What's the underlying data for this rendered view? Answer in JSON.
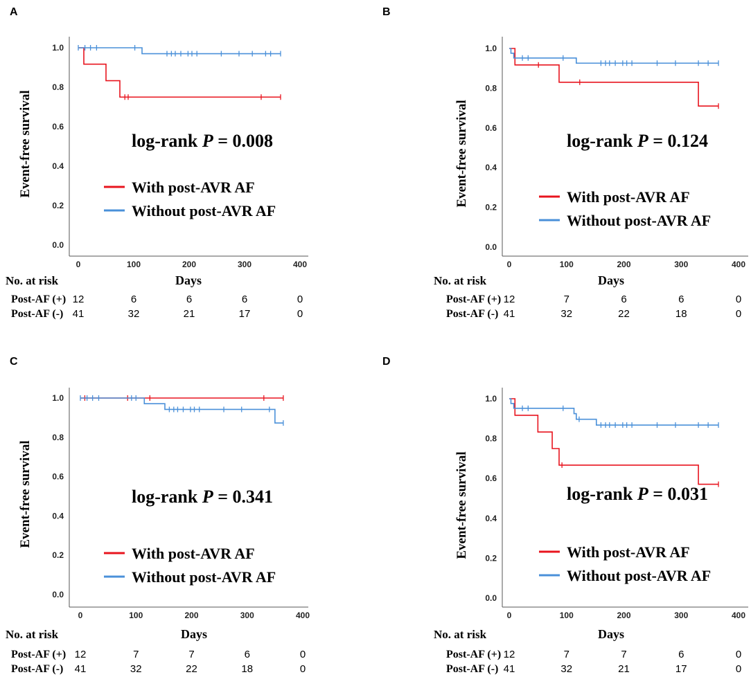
{
  "colors": {
    "with_af": "#e8141e",
    "without_af": "#4a90d9",
    "axis": "#555555"
  },
  "risk_table": {
    "title": "No. at risk",
    "row_plus": "Post-AF (+)",
    "row_minus": "Post-AF (-)"
  },
  "legend": {
    "with_af": "With post-AVR AF",
    "without_af": "Without post-AVR AF"
  },
  "chart_data": [
    {
      "panel": "A",
      "type": "line",
      "xlabel": "Days",
      "ylabel": "Event-free survival",
      "xlim": [
        -10,
        400
      ],
      "ylim": [
        0,
        1.0
      ],
      "xticks": [
        "0",
        "100",
        "200",
        "300",
        "400"
      ],
      "yticks": [
        "0.0",
        "0.2",
        "0.4",
        "0.6",
        "0.8",
        "1.0"
      ],
      "annotation_prefix": "log-rank ",
      "annotation_p": "P",
      "annotation_value": " = 0.008",
      "series": [
        {
          "name": "With post-AVR AF",
          "step_x": [
            0,
            10,
            50,
            75,
            365
          ],
          "step_y": [
            1.0,
            0.917,
            0.833,
            0.75,
            0.75
          ],
          "censor_x": [
            84,
            90,
            330,
            365
          ],
          "censor_y": [
            0.75,
            0.75,
            0.75,
            0.75
          ]
        },
        {
          "name": "Without post-AVR AF",
          "step_x": [
            0,
            115,
            365
          ],
          "step_y": [
            1.0,
            0.97,
            0.97
          ],
          "censor_x": [
            0,
            12,
            22,
            33,
            102,
            160,
            168,
            175,
            185,
            198,
            205,
            214,
            258,
            290,
            314,
            338,
            347,
            365
          ],
          "censor_y": [
            1.0,
            1.0,
            1.0,
            1.0,
            1.0,
            0.97,
            0.97,
            0.97,
            0.97,
            0.97,
            0.97,
            0.97,
            0.97,
            0.97,
            0.97,
            0.97,
            0.97,
            0.97
          ]
        }
      ],
      "risk_plus": [
        "12",
        "6",
        "6",
        "6",
        "0"
      ],
      "risk_minus": [
        "41",
        "32",
        "21",
        "17",
        "0"
      ]
    },
    {
      "panel": "B",
      "type": "line",
      "xlabel": "Days",
      "ylabel": "Event-free survival",
      "xlim": [
        -10,
        400
      ],
      "ylim": [
        0,
        1.0
      ],
      "xticks": [
        "0",
        "100",
        "200",
        "300",
        "400"
      ],
      "yticks": [
        "0.0",
        "0.2",
        "0.4",
        "0.6",
        "0.8",
        "1.0"
      ],
      "annotation_prefix": "log-rank ",
      "annotation_p": "P",
      "annotation_value": " = 0.124",
      "series": [
        {
          "name": "With post-AVR AF",
          "step_x": [
            0,
            10,
            87,
            330,
            365
          ],
          "step_y": [
            1.0,
            0.917,
            0.83,
            0.71,
            0.71
          ],
          "censor_x": [
            51,
            123,
            365
          ],
          "censor_y": [
            0.917,
            0.83,
            0.71
          ]
        },
        {
          "name": "Without post-AVR AF",
          "step_x": [
            0,
            3,
            8,
            117,
            365
          ],
          "step_y": [
            1.0,
            0.976,
            0.952,
            0.926,
            0.926
          ],
          "censor_x": [
            23,
            33,
            94,
            160,
            168,
            175,
            185,
            198,
            205,
            214,
            258,
            290,
            330,
            347,
            365
          ],
          "censor_y": [
            0.952,
            0.952,
            0.952,
            0.926,
            0.926,
            0.926,
            0.926,
            0.926,
            0.926,
            0.926,
            0.926,
            0.926,
            0.926,
            0.926,
            0.926
          ]
        }
      ],
      "risk_plus": [
        "12",
        "7",
        "6",
        "6",
        "0"
      ],
      "risk_minus": [
        "41",
        "32",
        "22",
        "18",
        "0"
      ]
    },
    {
      "panel": "C",
      "type": "line",
      "xlabel": "Days",
      "ylabel": "Event-free survival",
      "xlim": [
        -10,
        400
      ],
      "ylim": [
        0,
        1.0
      ],
      "xticks": [
        "0",
        "100",
        "200",
        "300",
        "400"
      ],
      "yticks": [
        "0.0",
        "0.2",
        "0.4",
        "0.6",
        "0.8",
        "1.0"
      ],
      "annotation_prefix": "log-rank ",
      "annotation_p": "P",
      "annotation_value": " = 0.341",
      "series": [
        {
          "name": "With post-AVR AF",
          "step_x": [
            0,
            365
          ],
          "step_y": [
            1.0,
            1.0
          ],
          "censor_x": [
            8,
            85,
            125,
            330,
            365
          ],
          "censor_y": [
            1.0,
            1.0,
            1.0,
            1.0,
            1.0
          ]
        },
        {
          "name": "Without post-AVR AF",
          "step_x": [
            0,
            115,
            152,
            350,
            365
          ],
          "step_y": [
            1.0,
            0.971,
            0.942,
            0.873,
            0.873
          ],
          "censor_x": [
            0,
            12,
            22,
            33,
            92,
            100,
            160,
            168,
            175,
            185,
            198,
            205,
            214,
            258,
            290,
            340,
            365
          ],
          "censor_y": [
            1.0,
            1.0,
            1.0,
            1.0,
            1.0,
            1.0,
            0.942,
            0.942,
            0.942,
            0.942,
            0.942,
            0.942,
            0.942,
            0.942,
            0.942,
            0.942,
            0.873
          ]
        }
      ],
      "risk_plus": [
        "12",
        "7",
        "7",
        "6",
        "0"
      ],
      "risk_minus": [
        "41",
        "32",
        "22",
        "18",
        "0"
      ]
    },
    {
      "panel": "D",
      "type": "line",
      "xlabel": "Days",
      "ylabel": "Event-free survival",
      "xlim": [
        -10,
        400
      ],
      "ylim": [
        0,
        1.0
      ],
      "xticks": [
        "0",
        "100",
        "200",
        "300",
        "400"
      ],
      "yticks": [
        "0.0",
        "0.2",
        "0.4",
        "0.6",
        "0.8",
        "1.0"
      ],
      "annotation_prefix": "log-rank ",
      "annotation_p": "P",
      "annotation_value": " = 0.031",
      "series": [
        {
          "name": "With post-AVR AF",
          "step_x": [
            0,
            10,
            50,
            75,
            87,
            330,
            365
          ],
          "step_y": [
            1.0,
            0.917,
            0.833,
            0.75,
            0.667,
            0.571,
            0.571
          ],
          "censor_x": [
            92,
            365
          ],
          "censor_y": [
            0.667,
            0.571
          ]
        },
        {
          "name": "Without post-AVR AF",
          "step_x": [
            0,
            3,
            8,
            113,
            117,
            152,
            365
          ],
          "step_y": [
            1.0,
            0.976,
            0.952,
            0.925,
            0.897,
            0.868,
            0.868
          ],
          "censor_x": [
            23,
            33,
            94,
            122,
            160,
            168,
            175,
            185,
            198,
            205,
            214,
            258,
            290,
            330,
            347,
            365
          ],
          "censor_y": [
            0.952,
            0.952,
            0.952,
            0.897,
            0.868,
            0.868,
            0.868,
            0.868,
            0.868,
            0.868,
            0.868,
            0.868,
            0.868,
            0.868,
            0.868,
            0.868
          ]
        }
      ],
      "risk_plus": [
        "12",
        "7",
        "7",
        "6",
        "0"
      ],
      "risk_minus": [
        "41",
        "32",
        "21",
        "17",
        "0"
      ]
    }
  ]
}
